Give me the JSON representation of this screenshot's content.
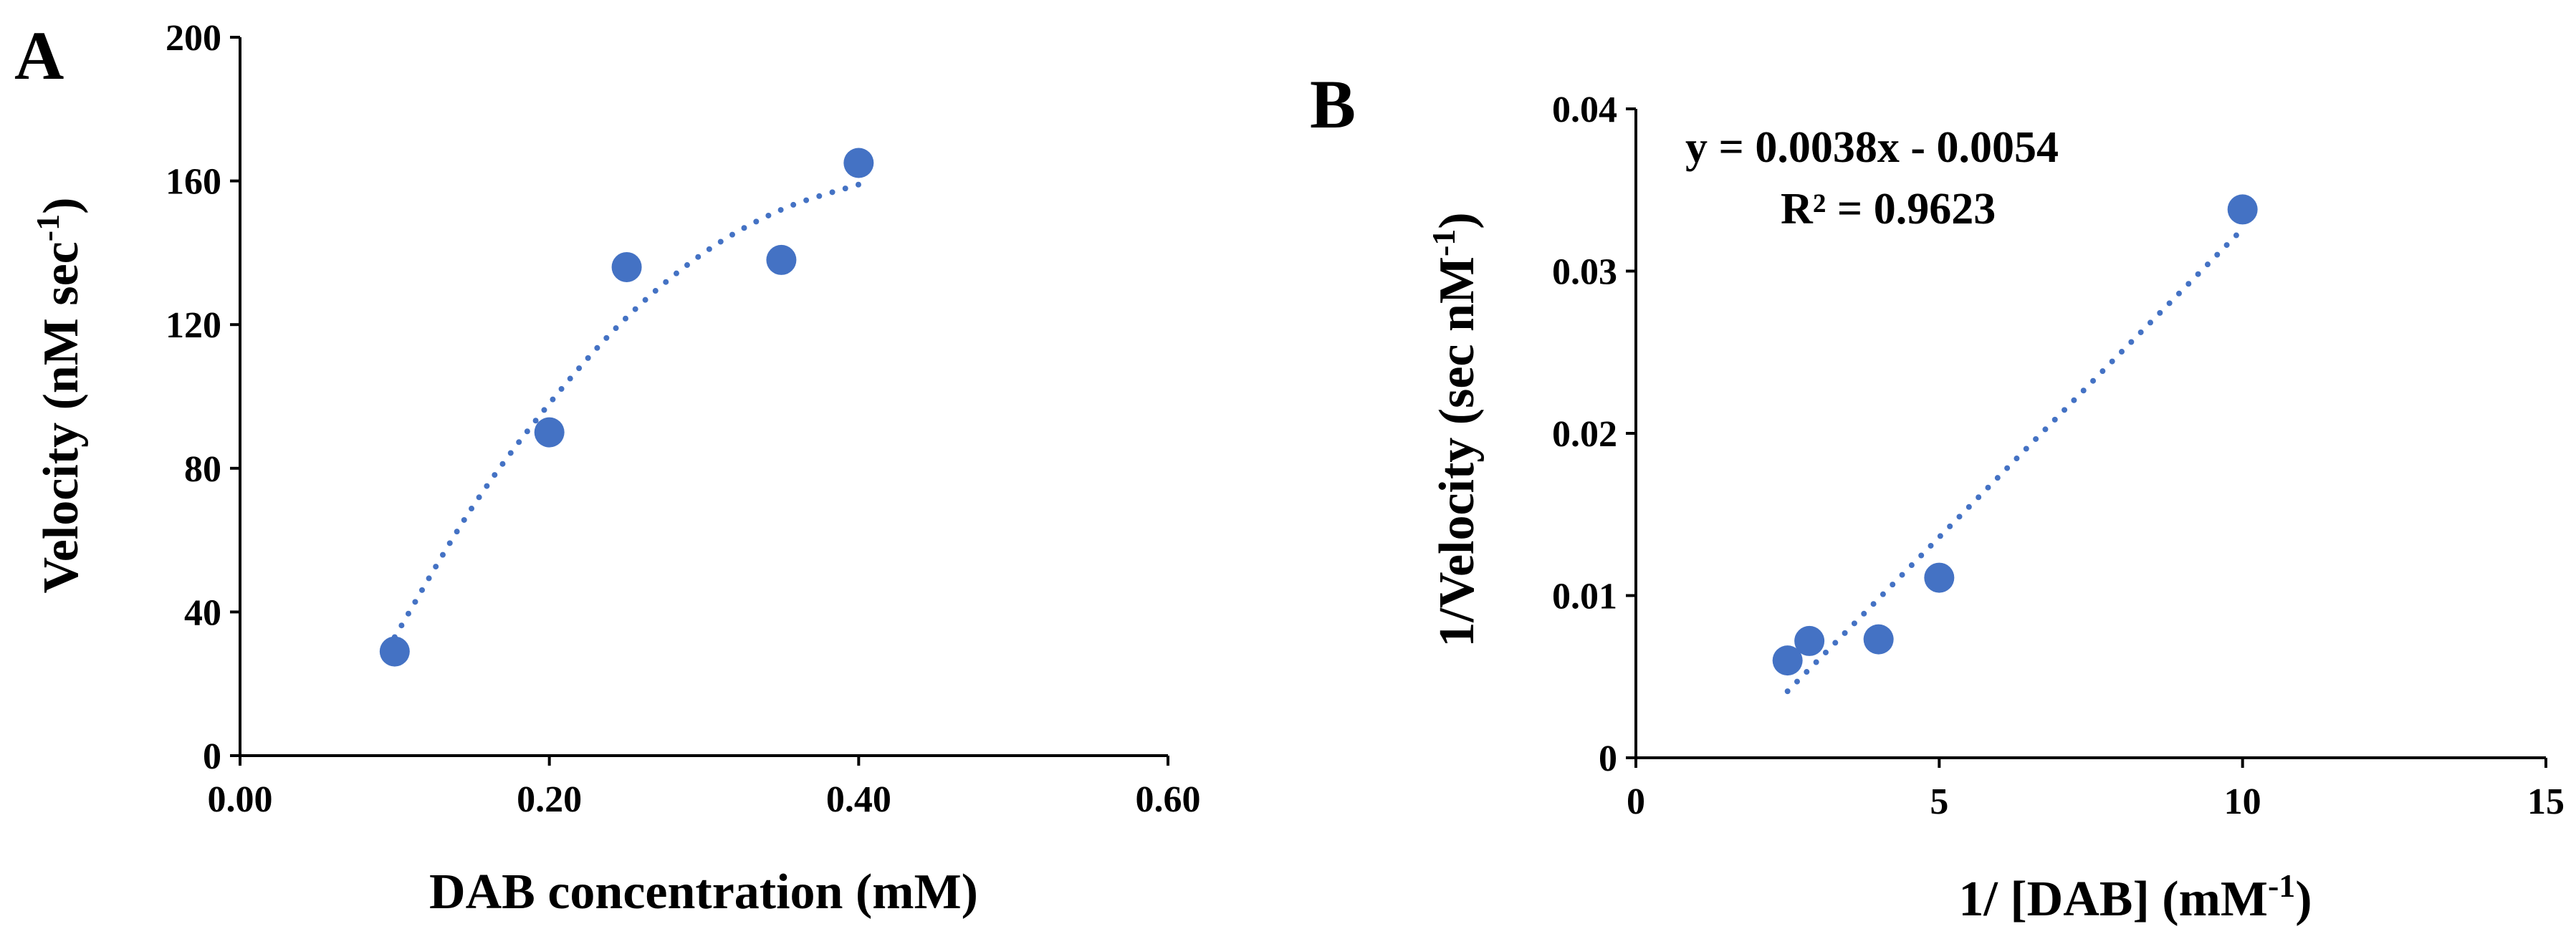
{
  "chart_data": [
    {
      "panel": "A",
      "type": "scatter",
      "title": "",
      "xlabel": "DAB concentration (mM)",
      "ylabel_main": "Velocity (nM sec",
      "ylabel_sup": "-1",
      "ylabel_close": ")",
      "xlim": [
        0,
        0.6
      ],
      "ylim": [
        0,
        200
      ],
      "xticks": [
        0,
        0.2,
        0.4,
        0.6
      ],
      "xtick_labels": [
        "0.00",
        "0.20",
        "0.40",
        "0.60"
      ],
      "yticks": [
        0,
        40,
        80,
        120,
        160,
        200
      ],
      "ytick_labels": [
        "0",
        "40",
        "80",
        "120",
        "160",
        "200"
      ],
      "grid": false,
      "color": "#4472C4",
      "series": [
        {
          "name": "Velocity",
          "x": [
            0.1,
            0.2,
            0.25,
            0.35,
            0.4
          ],
          "y": [
            29,
            90,
            136,
            138,
            165
          ]
        }
      ],
      "trendline": {
        "style": "dotted",
        "kind": "polynomial",
        "x_range": [
          0.1,
          0.4
        ],
        "x": [
          0.1,
          0.15,
          0.2,
          0.25,
          0.3,
          0.35,
          0.4
        ],
        "y": [
          33,
          69,
          98,
          122,
          140,
          152,
          159
        ]
      }
    },
    {
      "panel": "B",
      "type": "scatter",
      "title": "",
      "xlabel_main": "1/ [DAB] (mM",
      "xlabel_sup": "-1",
      "xlabel_close": ")",
      "ylabel_main": "1/Velocity (sec nM",
      "ylabel_sup": "-1",
      "ylabel_close": ")",
      "xlim": [
        0,
        15
      ],
      "ylim": [
        0,
        0.04
      ],
      "xticks": [
        0,
        5,
        10,
        15
      ],
      "xtick_labels": [
        "0",
        "5",
        "10",
        "15"
      ],
      "yticks": [
        0,
        0.01,
        0.02,
        0.03,
        0.04
      ],
      "ytick_labels": [
        "0",
        "0.01",
        "0.02",
        "0.03",
        "0.04"
      ],
      "grid": false,
      "color": "#4472C4",
      "series": [
        {
          "name": "1/Velocity",
          "x": [
            2.5,
            2.86,
            4.0,
            5.0,
            10.0
          ],
          "y": [
            0.006,
            0.0072,
            0.0073,
            0.0111,
            0.0338
          ]
        }
      ],
      "trendline": {
        "style": "dotted",
        "kind": "linear",
        "slope": 0.0038,
        "intercept": -0.0054,
        "x_range": [
          2.5,
          10
        ]
      },
      "annotations": {
        "equation": "y = 0.0038x - 0.0054",
        "r_squared": "R² = 0.9623"
      }
    }
  ]
}
